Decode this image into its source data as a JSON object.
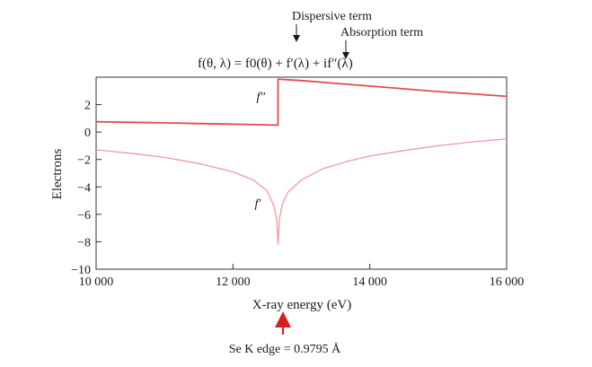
{
  "chart_data": {
    "type": "line",
    "xlabel": "X-ray energy (eV)",
    "ylabel": "Electrons",
    "xlim": [
      10000,
      16000
    ],
    "ylim": [
      -10,
      4
    ],
    "x_ticks": [
      10000,
      12000,
      14000,
      16000
    ],
    "x_tick_labels": [
      "10 000",
      "12 000",
      "14 000",
      "16 000"
    ],
    "y_ticks": [
      2,
      0,
      -2,
      -4,
      -6,
      -8,
      -10
    ],
    "y_tick_labels": [
      "2",
      "0",
      "−2",
      "−4",
      "−6",
      "−8",
      "−10"
    ],
    "grid": false,
    "formula": "f(θ, λ) = f0(θ) + f′(λ) + if″(λ)",
    "annotations": {
      "dispersive": "Dispersive term",
      "absorption": "Absorption term",
      "edge": "Se K edge = 0.9795 Å"
    },
    "series": [
      {
        "name": "f″",
        "color": "#e24b4b",
        "x": [
          10000,
          10500,
          11000,
          11500,
          12000,
          12400,
          12657,
          12658,
          12700,
          13000,
          13500,
          14000,
          14500,
          15000,
          15500,
          16000
        ],
        "y": [
          0.75,
          0.71,
          0.67,
          0.62,
          0.57,
          0.53,
          0.5,
          3.85,
          3.84,
          3.75,
          3.55,
          3.35,
          3.15,
          2.95,
          2.78,
          2.6
        ]
      },
      {
        "name": "f′",
        "color": "#f29a9a",
        "x": [
          10000,
          10500,
          11000,
          11500,
          12000,
          12300,
          12500,
          12600,
          12640,
          12658,
          12680,
          12720,
          12800,
          13000,
          13300,
          13700,
          14000,
          14500,
          15000,
          15500,
          16000
        ],
        "y": [
          -1.3,
          -1.55,
          -1.85,
          -2.3,
          -2.9,
          -3.5,
          -4.3,
          -5.4,
          -6.4,
          -8.2,
          -6.3,
          -5.3,
          -4.4,
          -3.5,
          -2.7,
          -2.1,
          -1.75,
          -1.35,
          -1.0,
          -0.72,
          -0.5
        ]
      }
    ]
  }
}
